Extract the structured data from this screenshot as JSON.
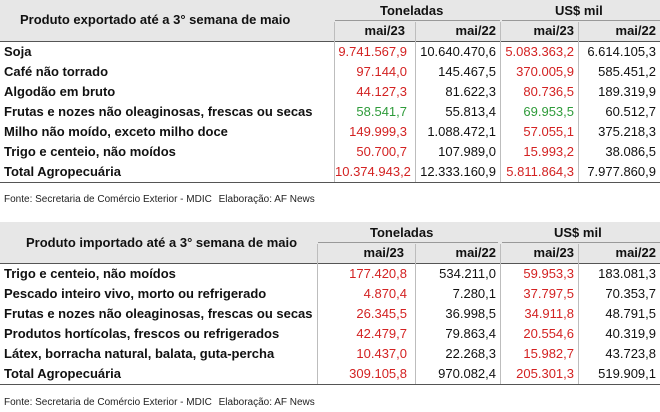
{
  "export_table": {
    "title": "Produto exportado até a 3° semana de maio",
    "group_tons": "Toneladas",
    "group_usd": "US$ mil",
    "col_labels": [
      "mai/23",
      "mai/22",
      "mai/23",
      "mai/22"
    ],
    "rows": [
      {
        "label": "Soja",
        "t23": "9.741.567,9",
        "t22": "10.640.470,6",
        "u23": "5.083.363,2",
        "u22": "6.614.105,3",
        "t23_color": "red",
        "u23_color": "red"
      },
      {
        "label": "Café não torrado",
        "t23": "97.144,0",
        "t22": "145.467,5",
        "u23": "370.005,9",
        "u22": "585.451,2",
        "t23_color": "red",
        "u23_color": "red"
      },
      {
        "label": "Algodão em bruto",
        "t23": "44.127,3",
        "t22": "81.622,3",
        "u23": "80.736,5",
        "u22": "189.319,9",
        "t23_color": "red",
        "u23_color": "red"
      },
      {
        "label": "Frutas e nozes não oleaginosas, frescas ou secas",
        "t23": "58.541,7",
        "t22": "55.813,4",
        "u23": "69.953,5",
        "u22": "60.512,7",
        "t23_color": "green",
        "u23_color": "green"
      },
      {
        "label": "Milho não moído, exceto milho doce",
        "t23": "149.999,3",
        "t22": "1.088.472,1",
        "u23": "57.055,1",
        "u22": "375.218,3",
        "t23_color": "red",
        "u23_color": "red"
      },
      {
        "label": "Trigo e centeio, não moídos",
        "t23": "50.700,7",
        "t22": "107.989,0",
        "u23": "15.993,2",
        "u22": "38.086,5",
        "t23_color": "red",
        "u23_color": "red"
      },
      {
        "label": "Total Agropecuária",
        "t23": "10.374.943,2",
        "t22": "12.333.160,9",
        "u23": "5.811.864,3",
        "u22": "7.977.860,9",
        "t23_color": "red",
        "u23_color": "red"
      }
    ],
    "source": "Fonte: Secretaria de Comércio Exterior - MDIC",
    "credit": "Elaboração: AF News"
  },
  "import_table": {
    "title": "Produto importado até a 3° semana de maio",
    "group_tons": "Toneladas",
    "group_usd": "US$ mil",
    "col_labels": [
      "mai/23",
      "mai/22",
      "mai/23",
      "mai/22"
    ],
    "rows": [
      {
        "label": "Trigo e centeio, não moídos",
        "t23": "177.420,8",
        "t22": "534.211,0",
        "u23": "59.953,3",
        "u22": "183.081,3",
        "t23_color": "red",
        "u23_color": "red"
      },
      {
        "label": "Pescado inteiro vivo, morto ou refrigerado",
        "t23": "4.870,4",
        "t22": "7.280,1",
        "u23": "37.797,5",
        "u22": "70.353,7",
        "t23_color": "red",
        "u23_color": "red"
      },
      {
        "label": "Frutas e nozes não oleaginosas, frescas ou secas",
        "t23": "26.345,5",
        "t22": "36.998,5",
        "u23": "34.911,8",
        "u22": "48.791,5",
        "t23_color": "red",
        "u23_color": "red"
      },
      {
        "label": "Produtos hortícolas, frescos ou refrigerados",
        "t23": "42.479,7",
        "t22": "79.863,4",
        "u23": "20.554,6",
        "u22": "40.319,9",
        "t23_color": "red",
        "u23_color": "red"
      },
      {
        "label": "Látex, borracha natural, balata, guta-percha",
        "t23": "10.437,0",
        "t22": "22.268,3",
        "u23": "15.982,7",
        "u22": "43.723,8",
        "t23_color": "red",
        "u23_color": "red"
      },
      {
        "label": "Total Agropecuária",
        "t23": "309.105,8",
        "t22": "970.082,4",
        "u23": "205.301,3",
        "u22": "519.909,1",
        "t23_color": "red",
        "u23_color": "red"
      }
    ],
    "source": "Fonte: Secretaria de Comércio Exterior - MDIC",
    "credit": "Elaboração: AF News"
  }
}
